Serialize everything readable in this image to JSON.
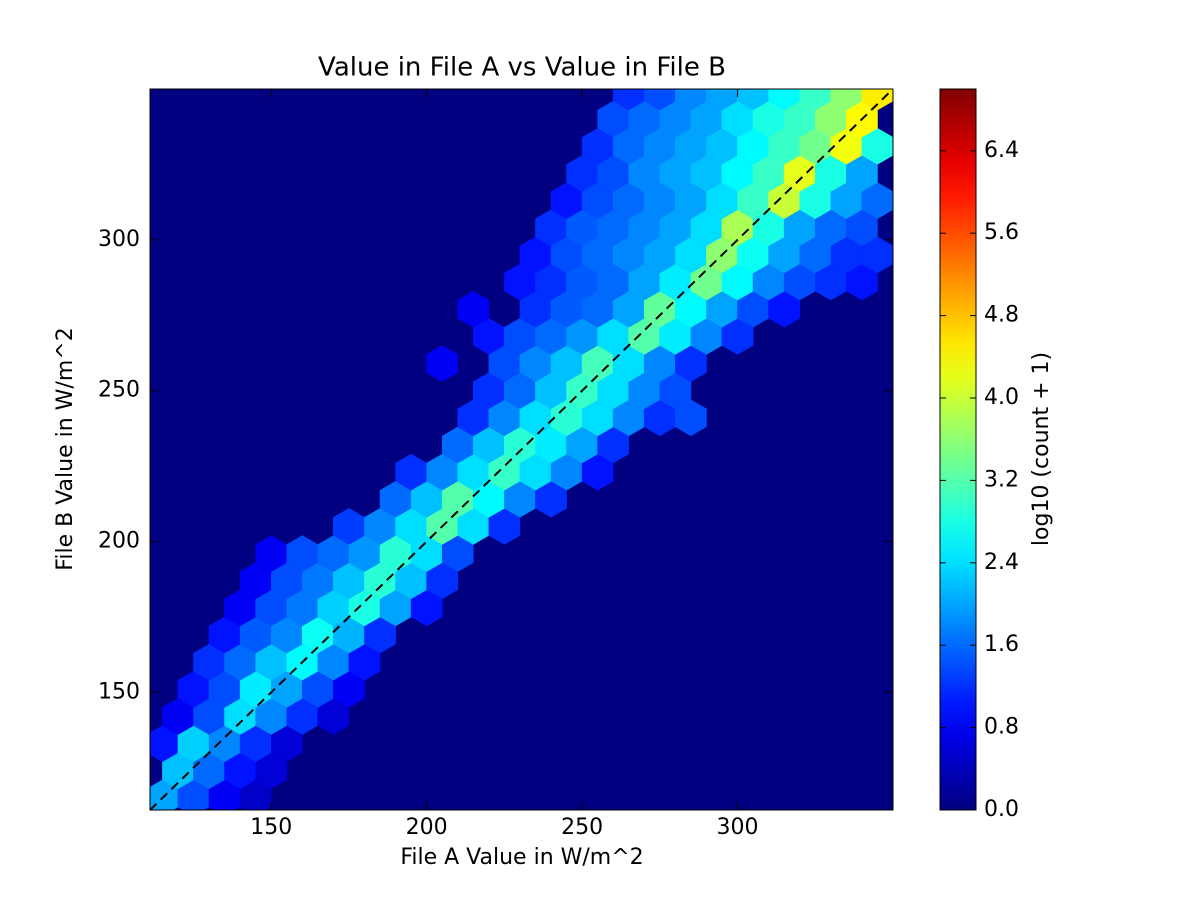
{
  "chart_data": {
    "type": "hexbin",
    "title": "Value in File A vs Value in File B",
    "x_label": "File A Value in W/m^2",
    "y_label": "File B Value in W/m^2",
    "colorbar_label": "log10 (count + 1)",
    "colormap": "jet",
    "identity_line": true,
    "xlim": [
      111,
      350
    ],
    "ylim": [
      111,
      350
    ],
    "xticks": [
      150,
      200,
      250,
      300
    ],
    "yticks": [
      150,
      200,
      250,
      300
    ],
    "clim": [
      0,
      7.0
    ],
    "cticks": [
      {
        "value": 0,
        "label": "0.0"
      },
      {
        "value": 0.8,
        "label": "0.8"
      },
      {
        "value": 1.6,
        "label": "1.6"
      },
      {
        "value": 2.4,
        "label": "2.4"
      },
      {
        "value": 3.2,
        "label": "3.2"
      },
      {
        "value": 4.0,
        "label": "4.0"
      },
      {
        "value": 4.8,
        "label": "4.8"
      },
      {
        "value": 5.6,
        "label": "5.6"
      },
      {
        "value": 6.4,
        "label": "6.4"
      }
    ],
    "rows": [
      {
        "y": 115,
        "x": [
          115,
          125,
          135,
          145
        ],
        "values": [
          2.0,
          1.4,
          0.8,
          0.5
        ]
      },
      {
        "y": 124,
        "x": [
          120,
          130,
          140,
          150
        ],
        "values": [
          2.2,
          1.6,
          1.0,
          0.6
        ]
      },
      {
        "y": 133,
        "x": [
          115,
          125,
          135,
          145,
          155
        ],
        "values": [
          1.0,
          2.3,
          1.8,
          1.2,
          0.6
        ]
      },
      {
        "y": 142,
        "x": [
          120,
          130,
          140,
          150,
          160,
          170
        ],
        "values": [
          0.8,
          1.4,
          2.4,
          1.8,
          1.2,
          0.6
        ]
      },
      {
        "y": 151,
        "x": [
          125,
          135,
          145,
          155,
          165,
          175
        ],
        "values": [
          1.0,
          1.4,
          2.5,
          2.0,
          1.4,
          0.8
        ]
      },
      {
        "y": 160,
        "x": [
          130,
          140,
          150,
          160,
          170,
          180
        ],
        "values": [
          1.2,
          1.6,
          2.2,
          2.6,
          1.8,
          1.0
        ]
      },
      {
        "y": 169,
        "x": [
          135,
          145,
          155,
          165,
          175,
          185
        ],
        "values": [
          1.0,
          1.5,
          1.8,
          2.7,
          2.1,
          1.2
        ]
      },
      {
        "y": 178,
        "x": [
          140,
          150,
          160,
          170,
          180,
          190,
          200
        ],
        "values": [
          0.8,
          1.4,
          1.7,
          2.3,
          2.8,
          2.0,
          1.0
        ]
      },
      {
        "y": 187,
        "x": [
          145,
          155,
          165,
          175,
          185,
          195,
          205
        ],
        "values": [
          0.8,
          1.4,
          1.7,
          2.2,
          2.9,
          2.2,
          1.2
        ]
      },
      {
        "y": 196,
        "x": [
          150,
          160,
          170,
          180,
          190,
          200,
          210
        ],
        "values": [
          0.8,
          1.4,
          1.6,
          1.9,
          2.9,
          2.4,
          1.4
        ]
      },
      {
        "y": 205,
        "x": [
          175,
          185,
          195,
          205,
          215,
          225
        ],
        "values": [
          1.3,
          1.8,
          2.4,
          3.2,
          2.4,
          1.2
        ]
      },
      {
        "y": 214,
        "x": [
          190,
          200,
          210,
          220,
          230,
          240
        ],
        "values": [
          1.6,
          2.2,
          3.2,
          2.6,
          1.8,
          1.2
        ]
      },
      {
        "y": 223,
        "x": [
          195,
          205,
          215,
          225,
          235,
          245,
          255
        ],
        "values": [
          1.2,
          1.8,
          2.4,
          3.0,
          2.4,
          1.8,
          1.0
        ]
      },
      {
        "y": 232,
        "x": [
          210,
          220,
          230,
          240,
          250,
          260
        ],
        "values": [
          1.6,
          2.2,
          2.9,
          2.5,
          2.0,
          1.2
        ]
      },
      {
        "y": 241,
        "x": [
          215,
          225,
          235,
          245,
          255,
          265,
          275,
          285
        ],
        "values": [
          1.2,
          1.8,
          2.4,
          2.9,
          2.4,
          1.8,
          1.2,
          1.4
        ]
      },
      {
        "y": 250,
        "x": [
          220,
          230,
          240,
          250,
          260,
          270,
          280
        ],
        "values": [
          1.2,
          1.6,
          2.2,
          3.0,
          2.4,
          1.8,
          1.4
        ]
      },
      {
        "y": 259,
        "x": [
          205,
          225,
          235,
          245,
          255,
          265,
          275,
          285
        ],
        "values": [
          0.8,
          1.4,
          1.8,
          2.2,
          3.1,
          2.4,
          1.8,
          1.2
        ]
      },
      {
        "y": 268,
        "x": [
          220,
          230,
          240,
          250,
          260,
          270,
          280,
          290,
          300
        ],
        "values": [
          1.0,
          1.4,
          1.6,
          1.9,
          2.4,
          3.2,
          2.5,
          1.8,
          1.2
        ]
      },
      {
        "y": 277,
        "x": [
          215,
          235,
          245,
          255,
          265,
          275,
          285,
          295,
          305,
          315
        ],
        "values": [
          0.8,
          1.2,
          1.5,
          1.6,
          2.0,
          3.3,
          2.6,
          2.0,
          1.4,
          1.0
        ]
      },
      {
        "y": 286,
        "x": [
          230,
          240,
          250,
          260,
          270,
          280,
          290,
          300,
          310,
          320,
          330,
          340
        ],
        "values": [
          1.0,
          1.2,
          1.5,
          1.6,
          2.0,
          2.5,
          3.4,
          2.6,
          1.8,
          1.4,
          1.2,
          1.0
        ]
      },
      {
        "y": 295,
        "x": [
          235,
          245,
          255,
          265,
          275,
          285,
          295,
          305,
          315,
          325,
          335,
          345
        ],
        "values": [
          1.0,
          1.4,
          1.6,
          1.8,
          2.0,
          2.4,
          3.6,
          2.7,
          2.0,
          1.6,
          1.2,
          1.2
        ]
      },
      {
        "y": 304,
        "x": [
          240,
          250,
          260,
          270,
          280,
          290,
          300,
          310,
          320,
          330,
          340
        ],
        "values": [
          1.2,
          1.5,
          1.6,
          1.8,
          2.0,
          2.4,
          3.8,
          2.8,
          2.0,
          1.6,
          1.4
        ]
      },
      {
        "y": 313,
        "x": [
          245,
          255,
          265,
          275,
          285,
          295,
          305,
          315,
          325,
          335,
          345
        ],
        "values": [
          1.0,
          1.4,
          1.6,
          1.8,
          2.0,
          2.4,
          3.0,
          4.0,
          2.8,
          2.0,
          1.6
        ]
      },
      {
        "y": 322,
        "x": [
          250,
          260,
          270,
          280,
          290,
          300,
          310,
          320,
          330,
          340
        ],
        "values": [
          1.2,
          1.4,
          1.8,
          2.0,
          2.2,
          2.6,
          3.0,
          4.2,
          2.8,
          2.0
        ]
      },
      {
        "y": 331,
        "x": [
          255,
          265,
          275,
          285,
          295,
          305,
          315,
          325,
          335,
          345
        ],
        "values": [
          1.2,
          1.6,
          1.8,
          2.0,
          2.2,
          2.6,
          3.0,
          3.4,
          4.3,
          2.8
        ]
      },
      {
        "y": 340,
        "x": [
          260,
          270,
          280,
          290,
          300,
          310,
          320,
          330,
          340
        ],
        "values": [
          1.4,
          1.6,
          1.8,
          2.0,
          2.4,
          2.8,
          3.0,
          3.6,
          4.4
        ]
      },
      {
        "y": 349,
        "x": [
          265,
          275,
          285,
          295,
          305,
          315,
          325,
          335,
          345
        ],
        "values": [
          1.2,
          1.4,
          1.8,
          2.0,
          2.2,
          2.6,
          3.0,
          3.6,
          4.5
        ]
      }
    ]
  }
}
